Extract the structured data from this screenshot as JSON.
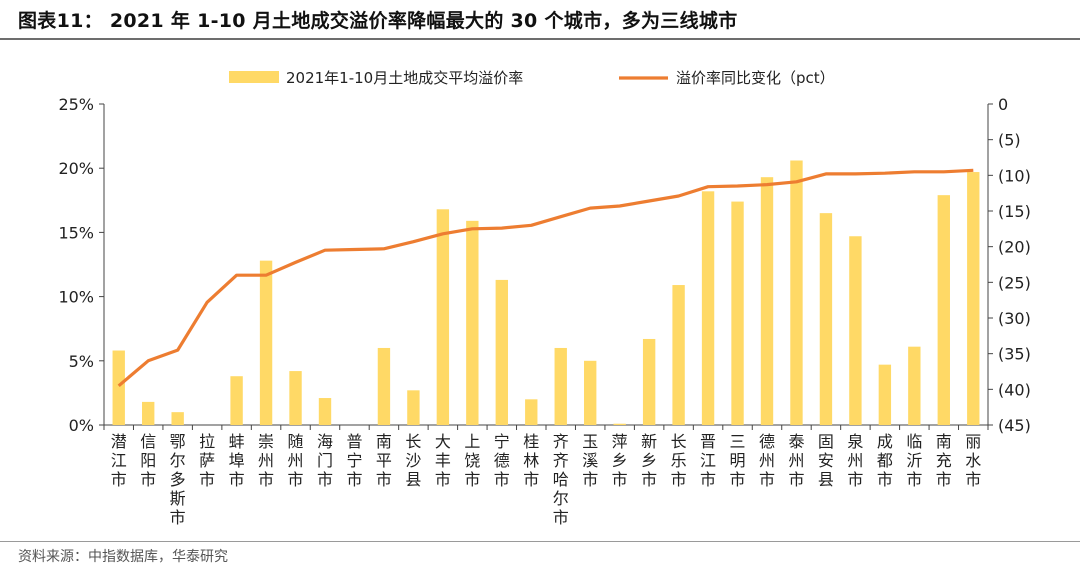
{
  "header": {
    "title": "图表11： 2021 年 1-10 月土地成交溢价率降幅最大的 30 个城市，多为三线城市"
  },
  "footer": {
    "source": "资料来源：中指数据库，华泰研究"
  },
  "colors": {
    "bar": "#FFD966",
    "line": "#ED7D31",
    "axis": "#444444"
  },
  "chart_data": {
    "type": "bar",
    "categories": [
      "潜江市",
      "信阳市",
      "鄂尔多斯市",
      "拉萨市",
      "蚌埠市",
      "崇州市",
      "随州市",
      "海门市",
      "普宁市",
      "南平市",
      "长沙县",
      "大丰市",
      "上饶市",
      "宁德市",
      "桂林市",
      "齐齐哈尔市",
      "玉溪市",
      "萍乡市",
      "新乡市",
      "长乐市",
      "晋江市",
      "三明市",
      "德州市",
      "泰州市",
      "固安县",
      "泉州市",
      "成都市",
      "临沂市",
      "南充市",
      "丽水市"
    ],
    "series": [
      {
        "name": "2021年1-10月土地成交平均溢价率",
        "type": "bar",
        "axis": "left",
        "unit": "%",
        "values": [
          5.8,
          1.8,
          1.0,
          0.0,
          3.8,
          12.8,
          4.2,
          2.1,
          0.0,
          6.0,
          2.7,
          16.8,
          15.9,
          11.3,
          2.0,
          6.0,
          5.0,
          0.1,
          6.7,
          10.9,
          18.2,
          17.4,
          19.3,
          20.6,
          16.5,
          14.7,
          4.7,
          6.1,
          17.9,
          19.7
        ]
      },
      {
        "name": "溢价率同比变化（pct）",
        "type": "line",
        "axis": "right",
        "values": [
          -39.5,
          -36.0,
          -34.5,
          -27.8,
          -24.0,
          -24.0,
          -22.2,
          -20.5,
          -20.4,
          -20.3,
          -19.3,
          -18.2,
          -17.5,
          -17.4,
          -17.0,
          -15.8,
          -14.6,
          -14.3,
          -13.6,
          -12.9,
          -11.6,
          -11.5,
          -11.3,
          -10.9,
          -9.8,
          -9.8,
          -9.7,
          -9.5,
          -9.5,
          -9.3
        ]
      }
    ],
    "y_left": {
      "ylim": [
        0,
        25
      ],
      "ticks": [
        "0%",
        "5%",
        "10%",
        "15%",
        "20%",
        "25%"
      ]
    },
    "y_right": {
      "ylim": [
        -45,
        0
      ],
      "inverted": true,
      "ticks": [
        "0",
        "(5)",
        "(10)",
        "(15)",
        "(20)",
        "(25)",
        "(30)",
        "(35)",
        "(40)",
        "(45)"
      ]
    },
    "grid": false,
    "legend": "top-center"
  }
}
